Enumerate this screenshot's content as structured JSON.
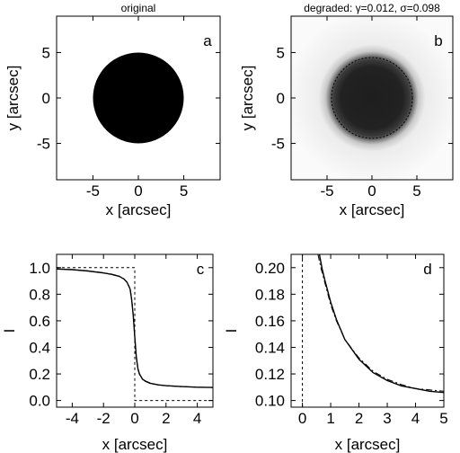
{
  "chart_data": [
    {
      "panel": "a",
      "type": "heatmap",
      "title": "original",
      "letter": "a",
      "xlabel": "x [arcsec]",
      "ylabel": "y [arcsec]",
      "xlim": [
        -9,
        9
      ],
      "ylim": [
        -9,
        9
      ],
      "xticks": [
        -5,
        0,
        5
      ],
      "yticks": [
        -5,
        0,
        5
      ],
      "disk": {
        "center": [
          0,
          0
        ],
        "radius": 5,
        "edge": "sharp",
        "interior": "black",
        "background": "white"
      }
    },
    {
      "panel": "b",
      "type": "heatmap",
      "title": "degraded: γ=0.012, σ=0.098",
      "letter": "b",
      "xlabel": "x [arcsec]",
      "ylabel": "y [arcsec]",
      "xlim": [
        -9,
        9
      ],
      "ylim": [
        -9,
        9
      ],
      "xticks": [
        -5,
        0,
        5
      ],
      "yticks": [
        -5,
        0,
        5
      ],
      "disk": {
        "center": [
          0,
          0
        ],
        "radius": 5,
        "edge": "blurred",
        "outline": "dotted"
      }
    },
    {
      "panel": "c",
      "type": "line",
      "letter": "c",
      "xlabel": "x [arcsec]",
      "ylabel": "I",
      "xlim": [
        -5,
        5
      ],
      "ylim": [
        -0.05,
        1.1
      ],
      "xticks": [
        -4,
        -2,
        0,
        2,
        4
      ],
      "yticks": [
        0.0,
        0.2,
        0.4,
        0.6,
        0.8,
        1.0
      ],
      "ytick_labels": [
        "0.0",
        "0.2",
        "0.4",
        "0.6",
        "0.8",
        "1.0"
      ],
      "series": [
        {
          "style": "dashed",
          "x": [
            -5,
            0,
            0,
            5
          ],
          "y": [
            1.0,
            1.0,
            0.0,
            0.0
          ]
        },
        {
          "style": "solid",
          "x": [
            -5,
            -4,
            -3,
            -2,
            -1.5,
            -1,
            -0.7,
            -0.5,
            -0.3,
            -0.2,
            -0.1,
            0,
            0.1,
            0.2,
            0.3,
            0.5,
            0.7,
            1,
            1.5,
            2,
            3,
            4,
            5
          ],
          "y": [
            0.99,
            0.985,
            0.975,
            0.96,
            0.95,
            0.935,
            0.915,
            0.89,
            0.84,
            0.76,
            0.64,
            0.48,
            0.33,
            0.24,
            0.2,
            0.16,
            0.145,
            0.13,
            0.118,
            0.112,
            0.105,
            0.1,
            0.098
          ]
        },
        {
          "style": "dashdot",
          "x": [
            -5,
            -4,
            -3,
            -2,
            -1.5,
            -1,
            -0.7,
            -0.5,
            -0.3,
            -0.2,
            -0.1,
            0,
            0.1,
            0.2,
            0.3,
            0.5,
            0.7,
            1,
            1.5,
            2,
            3,
            4,
            5
          ],
          "y": [
            0.99,
            0.986,
            0.977,
            0.962,
            0.952,
            0.937,
            0.917,
            0.892,
            0.845,
            0.77,
            0.65,
            0.47,
            0.32,
            0.235,
            0.197,
            0.158,
            0.143,
            0.128,
            0.117,
            0.111,
            0.104,
            0.1,
            0.098
          ]
        }
      ]
    },
    {
      "panel": "d",
      "type": "line",
      "letter": "d",
      "xlabel": "x [arcsec]",
      "ylabel": "I",
      "xlim": [
        -0.4,
        5
      ],
      "ylim": [
        0.095,
        0.21
      ],
      "xticks": [
        0,
        1,
        2,
        3,
        4,
        5
      ],
      "yticks": [
        0.1,
        0.12,
        0.14,
        0.16,
        0.18,
        0.2
      ],
      "ytick_labels": [
        "0.10",
        "0.12",
        "0.14",
        "0.16",
        "0.18",
        "0.20"
      ],
      "series": [
        {
          "style": "dashed",
          "x": [
            0,
            0
          ],
          "y": [
            0.095,
            0.21
          ]
        },
        {
          "style": "solid",
          "x": [
            0.6,
            0.7,
            0.8,
            1.0,
            1.2,
            1.5,
            2.0,
            2.5,
            3.0,
            3.5,
            4.0,
            4.5,
            5.0
          ],
          "y": [
            0.21,
            0.199,
            0.19,
            0.174,
            0.161,
            0.146,
            0.131,
            0.121,
            0.115,
            0.111,
            0.109,
            0.107,
            0.106
          ]
        },
        {
          "style": "dashdot",
          "x": [
            0.55,
            0.65,
            0.8,
            1.0,
            1.2,
            1.5,
            2.0,
            2.5,
            3.0,
            3.5,
            4.0,
            4.5,
            5.0
          ],
          "y": [
            0.21,
            0.2,
            0.188,
            0.172,
            0.16,
            0.146,
            0.132,
            0.122,
            0.116,
            0.112,
            0.109,
            0.108,
            0.107
          ]
        }
      ]
    }
  ]
}
